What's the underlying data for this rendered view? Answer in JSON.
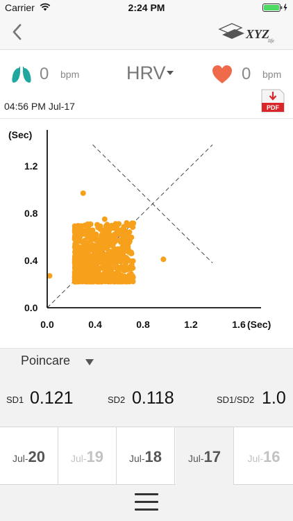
{
  "status_bar": {
    "carrier": "Carrier",
    "time": "2:24 PM"
  },
  "nav": {
    "brand": "XYZ",
    "brand_sub": "life"
  },
  "vitals": {
    "respiration": {
      "value": "0",
      "unit": "bpm"
    },
    "metric": "HRV",
    "heart_rate": {
      "value": "0",
      "unit": "bpm"
    }
  },
  "record": {
    "timestamp": "04:56 PM Jul-17",
    "pdf_label": "PDF"
  },
  "chart_data": {
    "type": "scatter",
    "title": "",
    "ylabel": "(Sec)",
    "xlabel": "(Sec)",
    "x_ticks": [
      "0.0",
      "0.4",
      "0.8",
      "1.2",
      "1.6"
    ],
    "y_ticks": [
      "0.0",
      "0.4",
      "0.8",
      "1.2"
    ],
    "xlim": [
      0,
      1.8
    ],
    "ylim": [
      0,
      1.45
    ],
    "point_color": "#f7a01c",
    "cluster": {
      "x_range": [
        0.23,
        0.72
      ],
      "y_range": [
        0.22,
        0.72
      ]
    },
    "outliers": [
      {
        "x": 0.3,
        "y": 0.97
      },
      {
        "x": 0.97,
        "y": 0.41
      },
      {
        "x": 0.02,
        "y": 0.27
      },
      {
        "x": 0.48,
        "y": 0.75
      },
      {
        "x": 0.64,
        "y": 0.53
      },
      {
        "x": 0.7,
        "y": 0.46
      }
    ]
  },
  "analysis": {
    "plot_type": "Poincare",
    "sd1": {
      "label": "SD1",
      "value": "0.121"
    },
    "sd2": {
      "label": "SD2",
      "value": "0.118"
    },
    "ratio": {
      "label": "SD1/SD2",
      "value": "1.0"
    }
  },
  "dates": [
    {
      "month": "Jul-",
      "day": "20",
      "state": "normal"
    },
    {
      "month": "Jul-",
      "day": "19",
      "state": "faded"
    },
    {
      "month": "Jul-",
      "day": "18",
      "state": "normal"
    },
    {
      "month": "Jul-",
      "day": "17",
      "state": "selected"
    },
    {
      "month": "Jul-",
      "day": "16",
      "state": "faded"
    }
  ],
  "colors": {
    "accent": "#f7a01c",
    "lung": "#1fa7a0",
    "heart": "#ef6a4b",
    "pdf": "#d9262a"
  }
}
